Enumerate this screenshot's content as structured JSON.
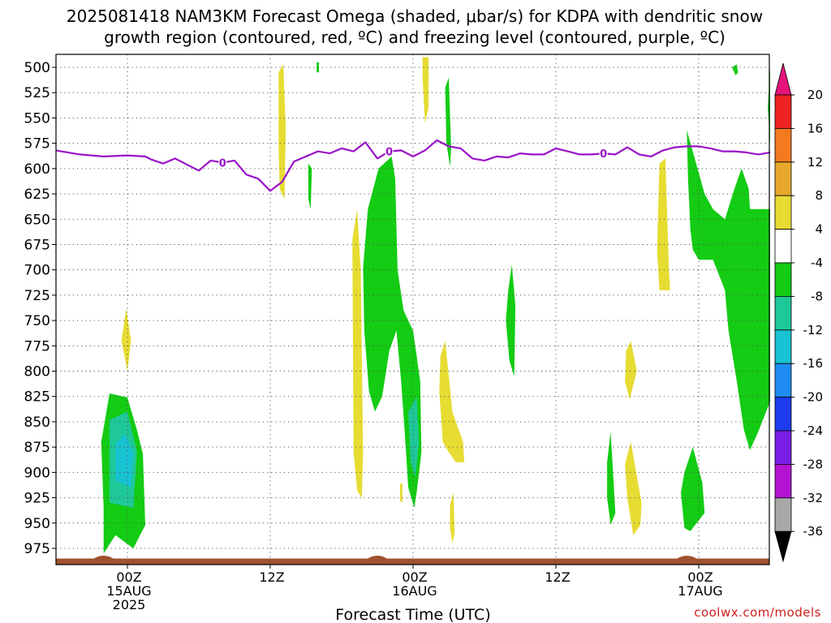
{
  "chart_data": {
    "type": "heatmap",
    "title_line1": "2025081418 NAM3KM Forecast Omega (shaded, μbar/s) for KDPA with dendritic snow",
    "title_line2": "growth region (contoured, red, ºC) and freezing level (contoured, purple, ºC)",
    "xlabel": "Forecast Time (UTC)",
    "credit": "coolwx.com/models",
    "yaxis": {
      "scale": "pressure (mb), inverted",
      "ylim": [
        990,
        490
      ],
      "ticks": [
        500,
        525,
        550,
        575,
        600,
        625,
        650,
        675,
        700,
        725,
        750,
        775,
        800,
        825,
        850,
        875,
        900,
        925,
        950,
        975
      ],
      "grid": "dotted"
    },
    "xaxis": {
      "range_hours_from_00Z_15AUG": [
        -6,
        54
      ],
      "ticks": [
        {
          "hour": 0,
          "lines": [
            "00Z",
            "15AUG",
            "2025"
          ]
        },
        {
          "hour": 12,
          "lines": [
            "12Z"
          ]
        },
        {
          "hour": 24,
          "lines": [
            "00Z",
            "16AUG"
          ]
        },
        {
          "hour": 36,
          "lines": [
            "12Z"
          ]
        },
        {
          "hour": 48,
          "lines": [
            "00Z",
            "17AUG"
          ]
        }
      ],
      "grid": "dotted"
    },
    "colorbar": {
      "labels": [
        "20",
        "16",
        "12",
        "8",
        "4",
        "-4",
        "-8",
        "-12",
        "-16",
        "-20",
        "-24",
        "-28",
        "-32",
        "-36"
      ],
      "bins": [
        {
          "from": 16,
          "to": 20,
          "color": "#ee2222"
        },
        {
          "from": 12,
          "to": 16,
          "color": "#f47a20"
        },
        {
          "from": 8,
          "to": 12,
          "color": "#e6a82a"
        },
        {
          "from": 4,
          "to": 8,
          "color": "#e6dc32"
        },
        {
          "from": -4,
          "to": 4,
          "color": "#ffffff"
        },
        {
          "from": -8,
          "to": -4,
          "color": "#13cc13"
        },
        {
          "from": -12,
          "to": -8,
          "color": "#1ec898"
        },
        {
          "from": -16,
          "to": -12,
          "color": "#18c2d2"
        },
        {
          "from": -20,
          "to": -16,
          "color": "#1e8cf0"
        },
        {
          "from": -24,
          "to": -20,
          "color": "#1e3cf0"
        },
        {
          "from": -28,
          "to": -24,
          "color": "#7a1ee6"
        },
        {
          "from": -32,
          "to": -28,
          "color": "#b414d2"
        },
        {
          "from": -36,
          "to": -32,
          "color": "#a8a8a8"
        }
      ],
      "top_arrow_color": "#e6147a",
      "bottom_arrow_color": "#000000"
    },
    "freezing_level": {
      "label": "0",
      "color": "#9a12c8",
      "label_at_hours": [
        8,
        22,
        40
      ],
      "points": [
        [
          -6,
          582
        ],
        [
          -4,
          586
        ],
        [
          -2,
          588
        ],
        [
          0,
          587
        ],
        [
          1.5,
          588
        ],
        [
          2,
          591
        ],
        [
          3,
          595
        ],
        [
          4,
          590
        ],
        [
          5,
          596
        ],
        [
          6,
          602
        ],
        [
          7,
          592
        ],
        [
          8,
          594
        ],
        [
          9,
          592
        ],
        [
          10,
          606
        ],
        [
          11,
          610
        ],
        [
          12,
          622
        ],
        [
          13,
          613
        ],
        [
          14,
          593
        ],
        [
          15,
          588
        ],
        [
          16,
          583
        ],
        [
          17,
          585
        ],
        [
          18,
          580
        ],
        [
          19,
          583
        ],
        [
          20,
          574
        ],
        [
          21,
          590
        ],
        [
          22,
          583
        ],
        [
          23,
          582
        ],
        [
          24,
          588
        ],
        [
          25,
          582
        ],
        [
          26,
          572
        ],
        [
          27,
          578
        ],
        [
          28,
          580
        ],
        [
          29,
          590
        ],
        [
          30,
          592
        ],
        [
          31,
          588
        ],
        [
          32,
          589
        ],
        [
          33,
          585
        ],
        [
          34,
          586
        ],
        [
          35,
          586
        ],
        [
          36,
          580
        ],
        [
          37,
          583
        ],
        [
          38,
          586
        ],
        [
          39,
          586
        ],
        [
          40,
          585
        ],
        [
          41,
          586
        ],
        [
          42,
          579
        ],
        [
          43,
          586
        ],
        [
          44,
          588
        ],
        [
          45,
          582
        ],
        [
          46,
          579
        ],
        [
          47,
          578
        ],
        [
          48,
          578
        ],
        [
          49,
          580
        ],
        [
          50,
          583
        ],
        [
          51,
          583
        ],
        [
          52,
          584
        ],
        [
          53,
          586
        ],
        [
          54,
          584
        ]
      ]
    },
    "terrain": {
      "color": "#a0522d",
      "top_mb": 985,
      "bumps_at_hours": [
        -2,
        21,
        47
      ]
    },
    "regions": [
      {
        "color": "#13cc13",
        "points": [
          [
            -2,
            980
          ],
          [
            -1,
            962
          ],
          [
            0.5,
            975
          ],
          [
            1.5,
            952
          ],
          [
            1.3,
            882
          ],
          [
            0.8,
            858
          ],
          [
            0,
            826
          ],
          [
            -1.5,
            822
          ],
          [
            -2.2,
            870
          ],
          [
            -2,
            935
          ]
        ]
      },
      {
        "color": "#1ec898",
        "points": [
          [
            -1.5,
            930
          ],
          [
            0.5,
            935
          ],
          [
            0.8,
            880
          ],
          [
            0,
            840
          ],
          [
            -1.5,
            848
          ]
        ]
      },
      {
        "color": "#18c2d2",
        "points": [
          [
            -1,
            908
          ],
          [
            0.3,
            915
          ],
          [
            0.5,
            880
          ],
          [
            -0.2,
            862
          ],
          [
            -1,
            872
          ]
        ]
      },
      {
        "color": "#e6dc32",
        "points": [
          [
            -0.5,
            770
          ],
          [
            0,
            800
          ],
          [
            0.3,
            770
          ],
          [
            -0.1,
            738
          ]
        ]
      },
      {
        "color": "#e6dc32",
        "points": [
          [
            12.7,
            505
          ],
          [
            13.1,
            497
          ],
          [
            13.3,
            560
          ],
          [
            13.2,
            630
          ],
          [
            12.8,
            620
          ],
          [
            12.7,
            580
          ]
        ]
      },
      {
        "color": "#13cc13",
        "points": [
          [
            15.2,
            595
          ],
          [
            15.5,
            600
          ],
          [
            15.4,
            640
          ],
          [
            15.2,
            630
          ]
        ]
      },
      {
        "color": "#13cc13",
        "points": [
          [
            15.9,
            495
          ],
          [
            16.1,
            495
          ],
          [
            16.1,
            505
          ],
          [
            15.9,
            505
          ]
        ]
      },
      {
        "color": "#e6dc32",
        "points": [
          [
            18.9,
            670
          ],
          [
            19.3,
            640
          ],
          [
            19.6,
            700
          ],
          [
            19.8,
            880
          ],
          [
            19.7,
            925
          ],
          [
            19.3,
            918
          ],
          [
            19,
            880
          ]
        ]
      },
      {
        "color": "#e6dc32",
        "points": [
          [
            19.2,
            760
          ],
          [
            19.4,
            740
          ],
          [
            19.5,
            790
          ],
          [
            19.3,
            820
          ]
        ]
      },
      {
        "color": "#13cc13",
        "points": [
          [
            19.8,
            698
          ],
          [
            20.2,
            640
          ],
          [
            21.1,
            600
          ],
          [
            22.2,
            588
          ],
          [
            22.5,
            610
          ],
          [
            22.7,
            700
          ],
          [
            23.2,
            740
          ],
          [
            24,
            760
          ],
          [
            24.6,
            810
          ],
          [
            24.7,
            880
          ],
          [
            24.3,
            920
          ],
          [
            24.1,
            935
          ],
          [
            23.6,
            915
          ],
          [
            23.3,
            860
          ],
          [
            23.0,
            810
          ],
          [
            22.6,
            760
          ],
          [
            22,
            780
          ],
          [
            21.4,
            825
          ],
          [
            20.8,
            840
          ],
          [
            20.3,
            820
          ],
          [
            19.9,
            760
          ]
        ]
      },
      {
        "color": "#1ec898",
        "points": [
          [
            23.6,
            840
          ],
          [
            24.3,
            825
          ],
          [
            24.5,
            870
          ],
          [
            24.2,
            905
          ],
          [
            23.8,
            890
          ]
        ]
      },
      {
        "color": "#e6dc32",
        "points": [
          [
            22.9,
            912
          ],
          [
            23.1,
            910
          ],
          [
            23.1,
            930
          ],
          [
            22.9,
            928
          ]
        ]
      },
      {
        "color": "#e6dc32",
        "points": [
          [
            24.8,
            490
          ],
          [
            25.3,
            490
          ],
          [
            25.3,
            540
          ],
          [
            25.0,
            555
          ],
          [
            24.8,
            510
          ]
        ]
      },
      {
        "color": "#13cc13",
        "points": [
          [
            26.7,
            520
          ],
          [
            27,
            510
          ],
          [
            27.2,
            580
          ],
          [
            27.1,
            598
          ],
          [
            26.8,
            575
          ]
        ]
      },
      {
        "color": "#e6dc32",
        "points": [
          [
            26.3,
            785
          ],
          [
            26.7,
            770
          ],
          [
            27.3,
            840
          ],
          [
            28.2,
            870
          ],
          [
            28.3,
            890
          ],
          [
            27.6,
            890
          ],
          [
            27,
            880
          ],
          [
            26.5,
            870
          ],
          [
            26.2,
            820
          ]
        ]
      },
      {
        "color": "#e6dc32",
        "points": [
          [
            27.1,
            932
          ],
          [
            27.4,
            920
          ],
          [
            27.5,
            960
          ],
          [
            27.3,
            970
          ],
          [
            27.1,
            955
          ]
        ]
      },
      {
        "color": "#13cc13",
        "points": [
          [
            32,
            720
          ],
          [
            32.3,
            695
          ],
          [
            32.6,
            735
          ],
          [
            32.5,
            805
          ],
          [
            32.1,
            790
          ],
          [
            31.8,
            750
          ]
        ]
      },
      {
        "color": "#13cc13",
        "points": [
          [
            40.3,
            890
          ],
          [
            40.6,
            860
          ],
          [
            41,
            940
          ],
          [
            40.6,
            952
          ],
          [
            40.3,
            925
          ]
        ]
      },
      {
        "color": "#e6dc32",
        "points": [
          [
            41.9,
            780
          ],
          [
            42.3,
            770
          ],
          [
            42.8,
            800
          ],
          [
            42.2,
            828
          ],
          [
            41.8,
            810
          ]
        ]
      },
      {
        "color": "#e6dc32",
        "points": [
          [
            41.8,
            892
          ],
          [
            42.3,
            870
          ],
          [
            43.2,
            930
          ],
          [
            43.1,
            952
          ],
          [
            42.5,
            962
          ],
          [
            42,
            925
          ]
        ]
      },
      {
        "color": "#e6dc32",
        "points": [
          [
            44.7,
            595
          ],
          [
            45.2,
            590
          ],
          [
            45.5,
            700
          ],
          [
            45.6,
            720
          ],
          [
            44.7,
            720
          ],
          [
            44.5,
            680
          ]
        ]
      },
      {
        "color": "#13cc13",
        "points": [
          [
            46.8,
            900
          ],
          [
            47.5,
            875
          ],
          [
            48.3,
            910
          ],
          [
            48.5,
            940
          ],
          [
            47.3,
            958
          ],
          [
            46.8,
            955
          ],
          [
            46.5,
            920
          ]
        ]
      },
      {
        "color": "#13cc13",
        "points": [
          [
            50.8,
            500
          ],
          [
            51.2,
            497
          ],
          [
            51.3,
            505
          ],
          [
            51.1,
            508
          ]
        ]
      },
      {
        "color": "#13cc13",
        "points": [
          [
            47,
            562
          ],
          [
            48.5,
            625
          ],
          [
            49.2,
            640
          ],
          [
            50.2,
            650
          ],
          [
            51,
            620
          ],
          [
            51.6,
            600
          ],
          [
            52.2,
            620
          ],
          [
            52.3,
            640
          ],
          [
            54,
            640
          ],
          [
            54,
            830
          ],
          [
            53,
            860
          ],
          [
            52.3,
            878
          ],
          [
            51.8,
            858
          ],
          [
            51.2,
            810
          ],
          [
            50.5,
            760
          ],
          [
            50.2,
            720
          ],
          [
            49.2,
            690
          ],
          [
            48,
            690
          ],
          [
            47.5,
            680
          ],
          [
            47.3,
            660
          ],
          [
            47.1,
            610
          ]
        ]
      },
      {
        "color": "#13cc13",
        "points": [
          [
            53.8,
            540
          ],
          [
            54,
            500
          ],
          [
            54,
            575
          ]
        ]
      }
    ]
  }
}
